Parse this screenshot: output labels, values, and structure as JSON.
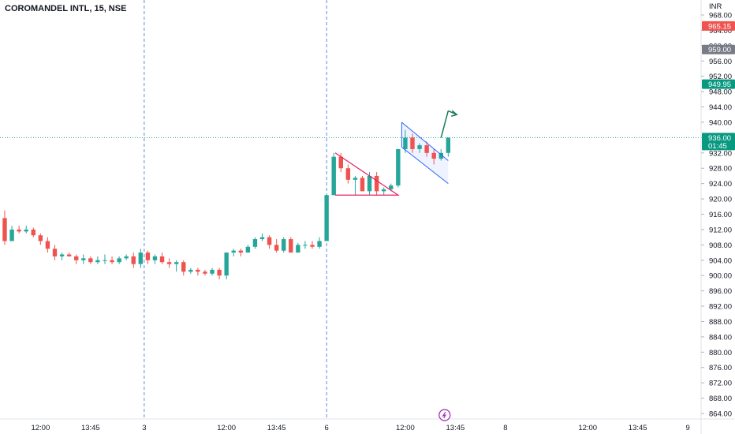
{
  "header": {
    "title": "COROMANDEL INTL, 15, NSE"
  },
  "colors": {
    "up": "#26a69a",
    "down": "#ef5350",
    "pattern_red": "#e91e63",
    "channel_blue": "#2962ff",
    "arrow": "#1b7a5a"
  },
  "chart_data": {
    "type": "candlestick",
    "currency": "INR",
    "ylim": [
      863,
      971
    ],
    "y_ticks": [
      968,
      964,
      960,
      956,
      952,
      948,
      944,
      940,
      936,
      932,
      928,
      924,
      920,
      916,
      912,
      908,
      904,
      900,
      896,
      892,
      888,
      884,
      880,
      876,
      872,
      868,
      864
    ],
    "x_ticks": [
      {
        "label": "12:00",
        "bar": 5
      },
      {
        "label": "13:45",
        "bar": 12
      },
      {
        "label": "3",
        "bar": 19.5
      },
      {
        "label": "12:00",
        "bar": 31
      },
      {
        "label": "13:45",
        "bar": 38
      },
      {
        "label": "6",
        "bar": 45
      },
      {
        "label": "12:00",
        "bar": 56
      },
      {
        "label": "13:45",
        "bar": 63
      },
      {
        "label": "8",
        "bar": 70
      },
      {
        "label": "12:00",
        "bar": 81.5
      },
      {
        "label": "13:45",
        "bar": 88.5
      },
      {
        "label": "9",
        "bar": 95.5
      }
    ],
    "session_separators": [
      19.5,
      45
    ],
    "candles": [
      {
        "o": 915,
        "h": 917,
        "l": 908,
        "c": 909
      },
      {
        "o": 909,
        "h": 913,
        "l": 909,
        "c": 912
      },
      {
        "o": 912,
        "h": 913,
        "l": 911,
        "c": 911.5
      },
      {
        "o": 911.5,
        "h": 913,
        "l": 911,
        "c": 912
      },
      {
        "o": 912,
        "h": 912.5,
        "l": 910,
        "c": 910.5
      },
      {
        "o": 910.5,
        "h": 911,
        "l": 908,
        "c": 909
      },
      {
        "o": 909,
        "h": 910,
        "l": 906,
        "c": 907
      },
      {
        "o": 907,
        "h": 908,
        "l": 904,
        "c": 905
      },
      {
        "o": 905,
        "h": 906,
        "l": 904,
        "c": 905.5
      },
      {
        "o": 905.5,
        "h": 906,
        "l": 905,
        "c": 905
      },
      {
        "o": 905,
        "h": 905.5,
        "l": 903,
        "c": 904
      },
      {
        "o": 904,
        "h": 905.5,
        "l": 903,
        "c": 904.5
      },
      {
        "o": 904.5,
        "h": 905,
        "l": 903,
        "c": 903.5
      },
      {
        "o": 903.5,
        "h": 905,
        "l": 903,
        "c": 904
      },
      {
        "o": 904,
        "h": 905.5,
        "l": 903,
        "c": 904
      },
      {
        "o": 904,
        "h": 905,
        "l": 903,
        "c": 903.5
      },
      {
        "o": 903.5,
        "h": 905,
        "l": 903,
        "c": 904.5
      },
      {
        "o": 904.5,
        "h": 905.5,
        "l": 904,
        "c": 905
      },
      {
        "o": 905,
        "h": 906,
        "l": 902,
        "c": 903
      },
      {
        "o": 903,
        "h": 907,
        "l": 902,
        "c": 906
      },
      {
        "o": 906,
        "h": 906.5,
        "l": 903,
        "c": 904
      },
      {
        "o": 904,
        "h": 905.5,
        "l": 903,
        "c": 905
      },
      {
        "o": 905,
        "h": 906,
        "l": 903,
        "c": 903.5
      },
      {
        "o": 903.5,
        "h": 904.5,
        "l": 902,
        "c": 903
      },
      {
        "o": 903,
        "h": 904,
        "l": 901,
        "c": 903.5
      },
      {
        "o": 903.5,
        "h": 904,
        "l": 900,
        "c": 901
      },
      {
        "o": 901,
        "h": 902,
        "l": 900.5,
        "c": 901.5
      },
      {
        "o": 901.5,
        "h": 902,
        "l": 900,
        "c": 901
      },
      {
        "o": 901,
        "h": 901.5,
        "l": 900,
        "c": 900.5
      },
      {
        "o": 900.5,
        "h": 902,
        "l": 900,
        "c": 901.5
      },
      {
        "o": 901.5,
        "h": 902,
        "l": 899,
        "c": 900
      },
      {
        "o": 900,
        "h": 906,
        "l": 899,
        "c": 906
      },
      {
        "o": 906,
        "h": 907,
        "l": 905,
        "c": 906.5
      },
      {
        "o": 906.5,
        "h": 907,
        "l": 905,
        "c": 906
      },
      {
        "o": 906,
        "h": 908,
        "l": 906,
        "c": 907.5
      },
      {
        "o": 907.5,
        "h": 910,
        "l": 907,
        "c": 909.5
      },
      {
        "o": 909.5,
        "h": 911,
        "l": 909,
        "c": 910
      },
      {
        "o": 910,
        "h": 910.5,
        "l": 907,
        "c": 908
      },
      {
        "o": 908,
        "h": 909.5,
        "l": 906,
        "c": 906.5
      },
      {
        "o": 906.5,
        "h": 910,
        "l": 906,
        "c": 909.5
      },
      {
        "o": 909.5,
        "h": 910,
        "l": 906,
        "c": 906
      },
      {
        "o": 906,
        "h": 908.5,
        "l": 906,
        "c": 908
      },
      {
        "o": 908,
        "h": 909,
        "l": 907,
        "c": 908
      },
      {
        "o": 908,
        "h": 909,
        "l": 907,
        "c": 907.5
      },
      {
        "o": 907.5,
        "h": 910,
        "l": 907,
        "c": 909
      },
      {
        "o": 909,
        "h": 921,
        "l": 909,
        "c": 921
      },
      {
        "o": 921,
        "h": 932,
        "l": 921,
        "c": 931
      },
      {
        "o": 931,
        "h": 932,
        "l": 927,
        "c": 928
      },
      {
        "o": 928,
        "h": 929,
        "l": 924,
        "c": 925
      },
      {
        "o": 925,
        "h": 926,
        "l": 921,
        "c": 925.5
      },
      {
        "o": 925.5,
        "h": 926,
        "l": 922,
        "c": 922
      },
      {
        "o": 922,
        "h": 927,
        "l": 921,
        "c": 926
      },
      {
        "o": 926,
        "h": 927,
        "l": 921,
        "c": 922
      },
      {
        "o": 922,
        "h": 923,
        "l": 921,
        "c": 922.5
      },
      {
        "o": 922.5,
        "h": 924,
        "l": 922,
        "c": 923.5
      },
      {
        "o": 923.5,
        "h": 933,
        "l": 923,
        "c": 933
      },
      {
        "o": 933,
        "h": 938,
        "l": 932,
        "c": 936
      },
      {
        "o": 936,
        "h": 937,
        "l": 932,
        "c": 933
      },
      {
        "o": 933,
        "h": 934.5,
        "l": 932,
        "c": 934
      },
      {
        "o": 934,
        "h": 935,
        "l": 931,
        "c": 932
      },
      {
        "o": 932,
        "h": 933,
        "l": 929,
        "c": 930.5
      },
      {
        "o": 930.5,
        "h": 933,
        "l": 930,
        "c": 932
      },
      {
        "o": 932,
        "h": 936,
        "l": 931,
        "c": 936
      }
    ],
    "current_price_line": 936,
    "price_badges": [
      {
        "value": 965.15,
        "label": "965.15",
        "color": "#ef5350"
      },
      {
        "value": 959.0,
        "label": "959.00",
        "color": "#787b86"
      },
      {
        "value": 949.95,
        "label": "949.95",
        "color": "#089981"
      },
      {
        "value": 936.0,
        "label": "936.00",
        "sub": "01:45",
        "color": "#089981"
      }
    ],
    "drawings": {
      "triangle": [
        [
          46.2,
          932
        ],
        [
          55,
          921
        ],
        [
          46.2,
          921
        ]
      ],
      "channel_upper": [
        [
          55.5,
          940
        ],
        [
          62,
          930
        ]
      ],
      "channel_lower": [
        [
          55.5,
          933.5
        ],
        [
          62,
          924
        ]
      ],
      "arrow_points": [
        [
          61,
          936
        ],
        [
          62,
          943
        ],
        [
          63.2,
          942
        ]
      ]
    },
    "replay_icon_bar": 61.5
  }
}
